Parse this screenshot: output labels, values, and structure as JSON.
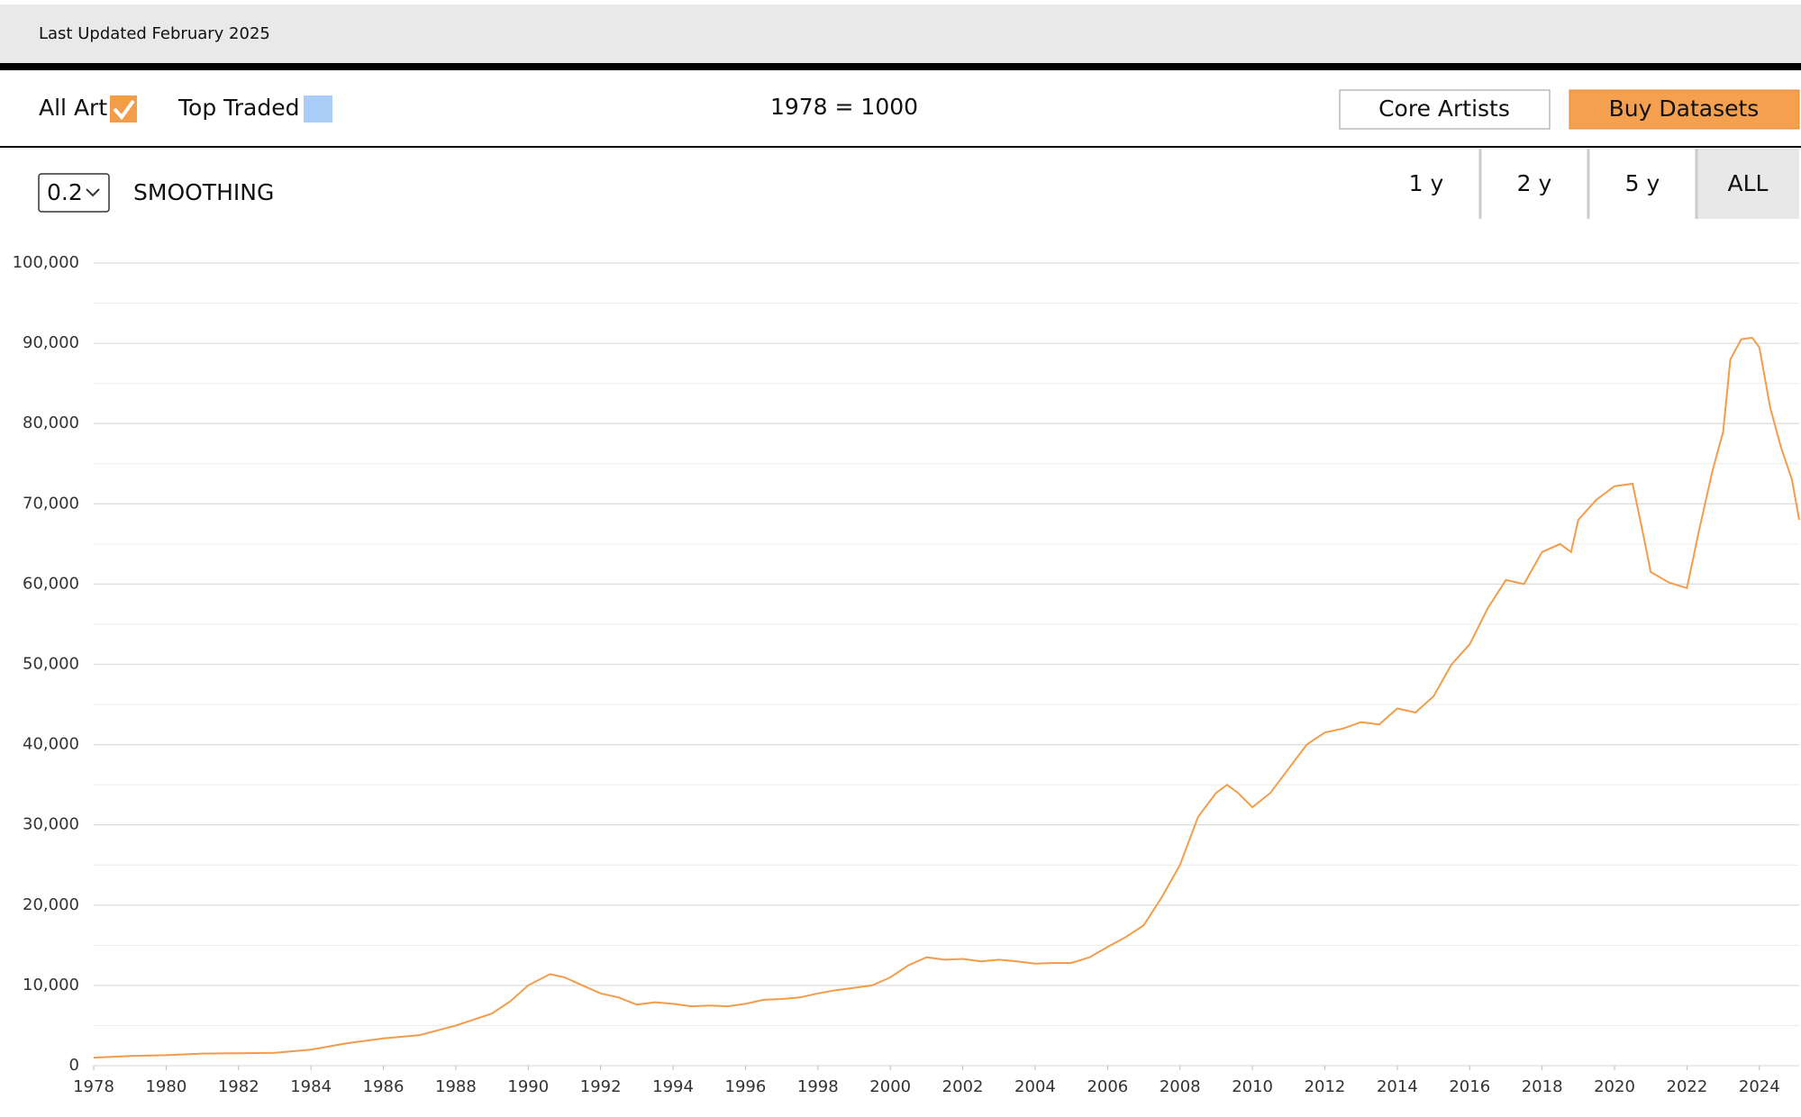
{
  "header": {
    "updated": "Last Updated February 2025"
  },
  "controls": {
    "inactive_series": {
      "name": "Top Traded",
      "color": "#a9cdf6"
    },
    "index_base": "1978 = 1000",
    "buttons": [
      "Core Artists",
      "Buy Datasets"
    ],
    "smoothing_value": "0.2",
    "smoothing_label": "SMOOTHING",
    "ranges": [
      "1 y",
      "2 y",
      "5 y",
      "ALL"
    ]
  },
  "chart_data": {
    "type": "line",
    "x": [
      1978,
      1979,
      1980,
      1981,
      1982,
      1983,
      1984,
      1985,
      1986,
      1987,
      1988,
      1989,
      1989.5,
      1990,
      1990.6,
      1991,
      1991.5,
      1992,
      1992.5,
      1993,
      1993.5,
      1994,
      1994.5,
      1995,
      1995.5,
      1996,
      1996.5,
      1997,
      1997.5,
      1998,
      1998.5,
      1999,
      1999.5,
      2000,
      2000.5,
      2001,
      2001.5,
      2002,
      2002.5,
      2003,
      2003.5,
      2004,
      2004.5,
      2005,
      2005.5,
      2006,
      2006.5,
      2007,
      2007.5,
      2008,
      2008.5,
      2009,
      2009.3,
      2009.6,
      2010,
      2010.5,
      2011,
      2011.5,
      2012,
      2012.5,
      2013,
      2013.5,
      2014,
      2014.5,
      2015,
      2015.5,
      2016,
      2016.5,
      2017,
      2017.5,
      2018,
      2018.5,
      2018.8,
      2019,
      2019.5,
      2020,
      2020.5,
      2020.8,
      2021,
      2021.5,
      2022,
      2022.3,
      2022.7,
      2023,
      2023.2,
      2023.5,
      2023.8,
      2024,
      2024.3,
      2024.6,
      2024.9,
      2025.1
    ],
    "series": [
      {
        "name": "All Art",
        "color": "#f39c4a",
        "values": [
          1000,
          1200,
          1300,
          1500,
          1550,
          1600,
          2000,
          2800,
          3400,
          3800,
          5000,
          6500,
          8000,
          10000,
          11400,
          11000,
          10000,
          9000,
          8500,
          7600,
          7900,
          7700,
          7400,
          7500,
          7400,
          7700,
          8200,
          8300,
          8500,
          9000,
          9400,
          9700,
          10000,
          11000,
          12500,
          13500,
          13200,
          13300,
          13000,
          13200,
          13000,
          12700,
          12800,
          12800,
          13500,
          14800,
          16000,
          17500,
          21000,
          25000,
          31000,
          34000,
          35000,
          34000,
          32200,
          34000,
          37000,
          40000,
          41500,
          42000,
          42800,
          42500,
          44500,
          44000,
          46000,
          50000,
          52500,
          57000,
          60500,
          60000,
          64000,
          65000,
          64000,
          68000,
          70500,
          72200,
          72500,
          66000,
          61500,
          60200,
          59500,
          66000,
          74000,
          79000,
          88000,
          90500,
          90700,
          89500,
          82000,
          77000,
          73000,
          68000
        ]
      }
    ],
    "xlim": [
      1978,
      2025.1
    ],
    "xticks": [
      1978,
      1980,
      1982,
      1984,
      1986,
      1988,
      1990,
      1992,
      1994,
      1996,
      1998,
      2000,
      2002,
      2004,
      2006,
      2008,
      2010,
      2012,
      2014,
      2016,
      2018,
      2020,
      2022,
      2024
    ],
    "ylim": [
      0,
      100000
    ],
    "yticks": [
      0,
      {
        "value": 10000,
        "label": "10,000"
      },
      {
        "value": 20000,
        "label": "20,000"
      },
      {
        "value": 30000,
        "label": "30,000"
      },
      {
        "value": 40000,
        "label": "40,000"
      },
      {
        "value": 50000,
        "label": "50,000"
      },
      {
        "value": 60000,
        "label": "60,000"
      },
      {
        "value": 70000,
        "label": "70,000"
      },
      {
        "value": 80000,
        "label": "80,000"
      },
      {
        "value": 90000,
        "label": "90,000"
      },
      {
        "value": 100000,
        "label": "100,000"
      }
    ],
    "grid": true
  }
}
